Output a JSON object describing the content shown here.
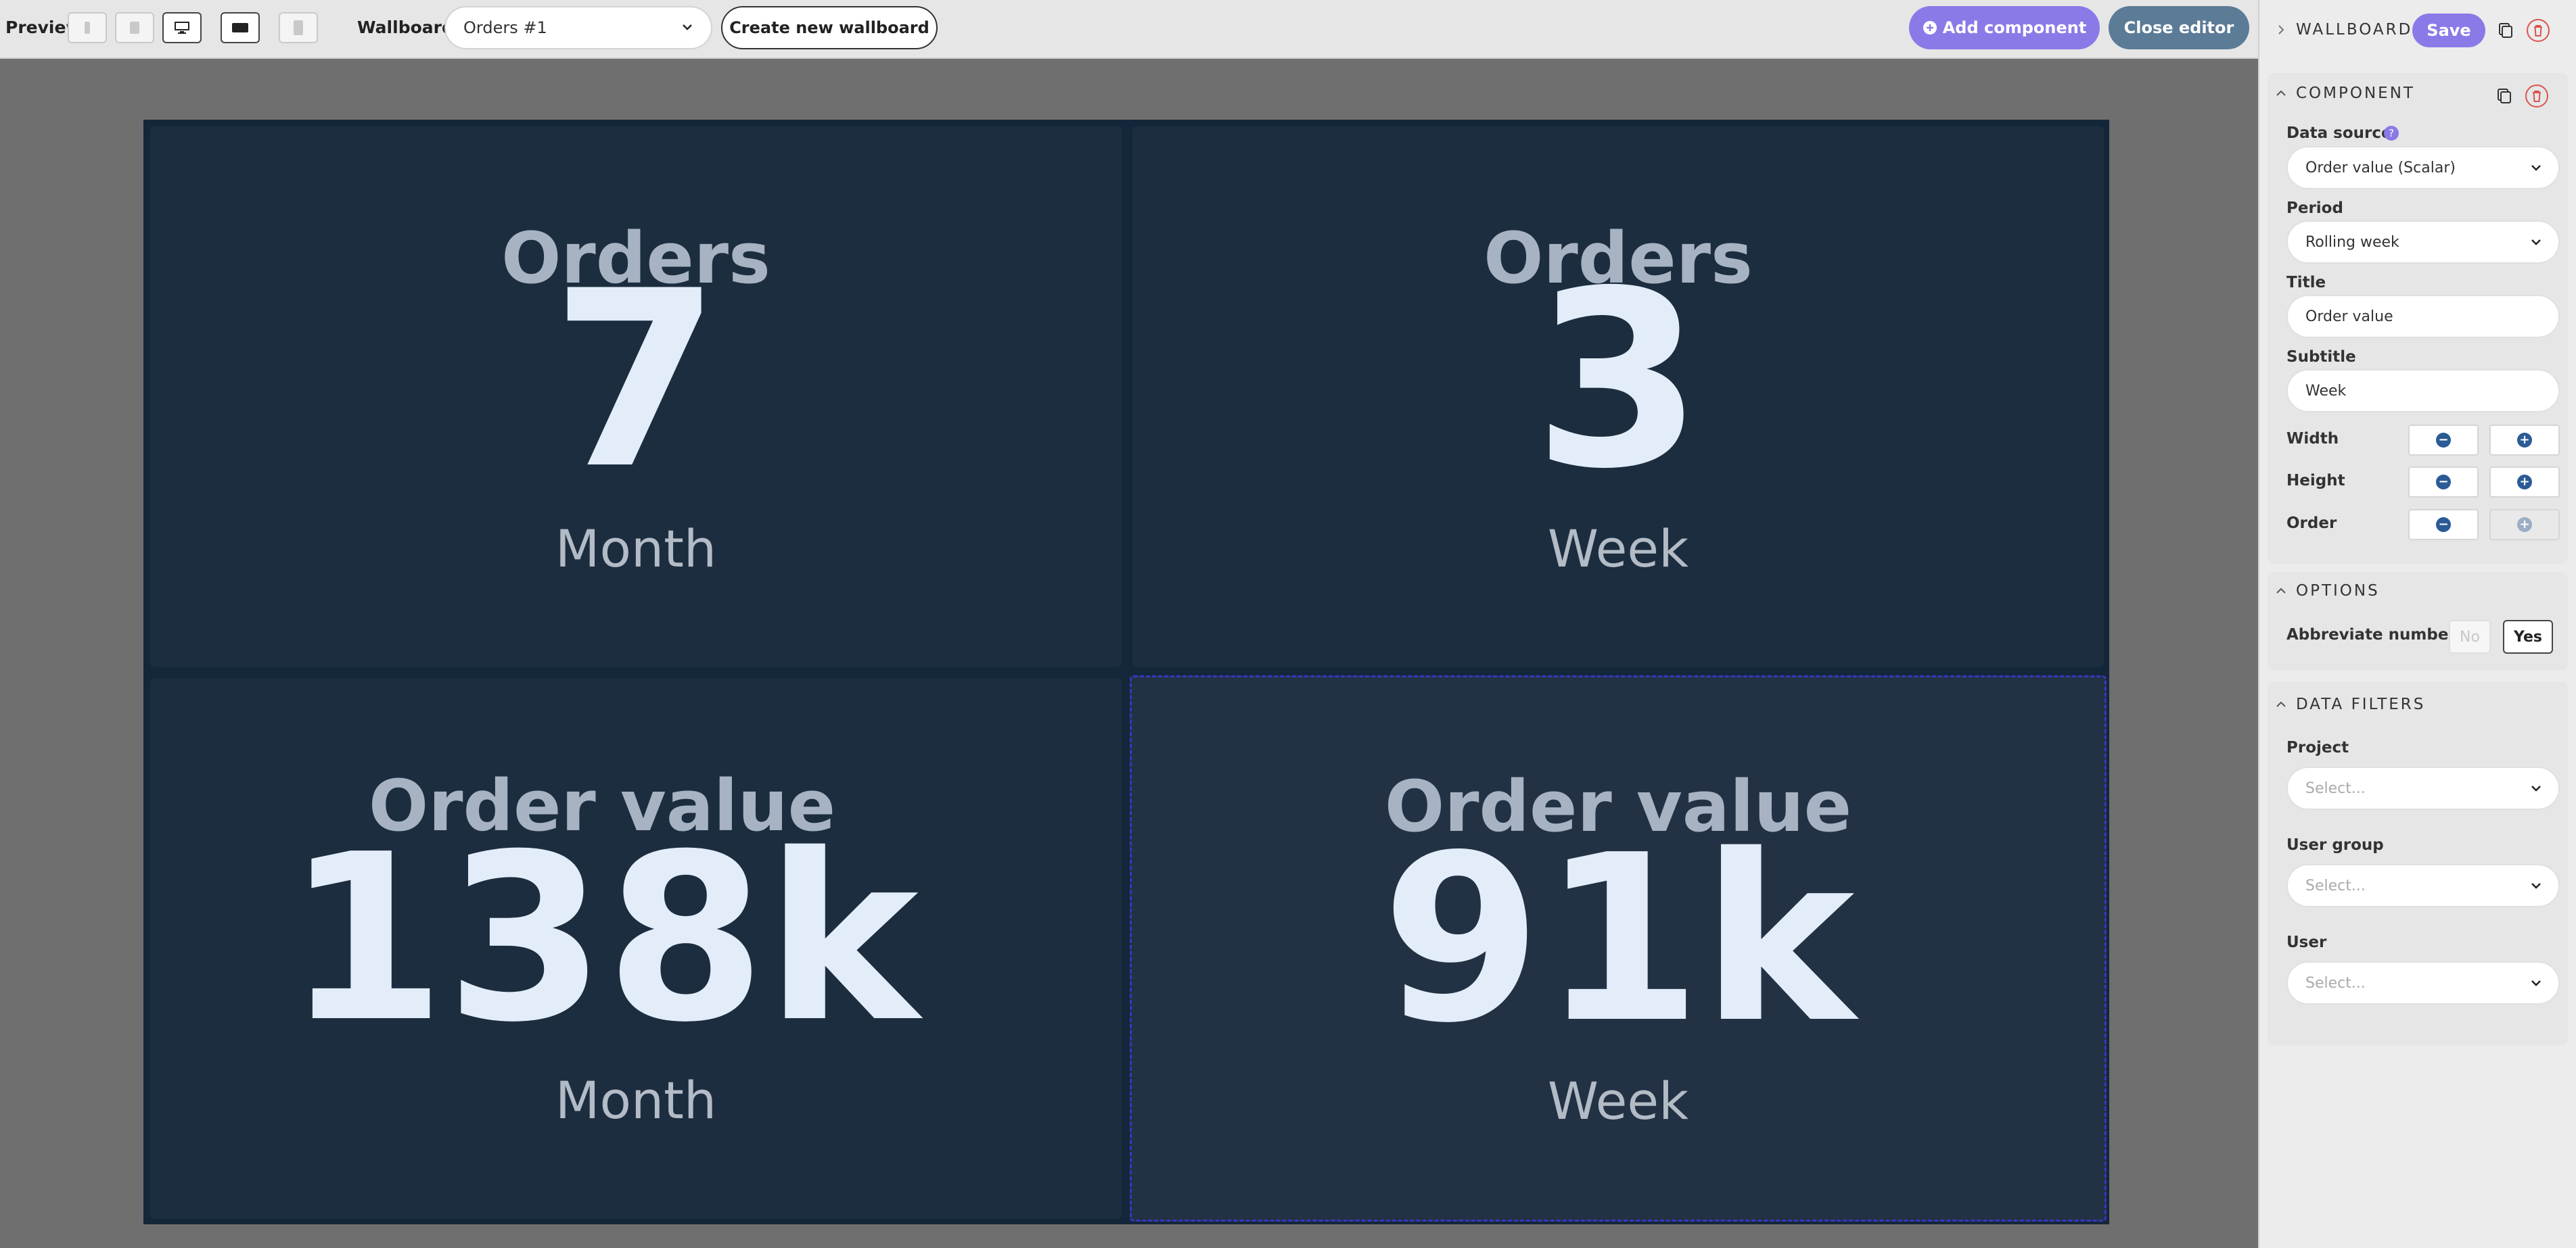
{
  "topbar": {
    "preview_label": "Preview",
    "wallboard_label": "Wallboard",
    "wallboard_selected": "Orders #1",
    "create_button": "Create new wallboard",
    "add_component_button": "Add component",
    "close_editor_button": "Close editor",
    "devices": [
      {
        "icon": "phone-portrait-icon",
        "active": false
      },
      {
        "icon": "tablet-icon",
        "active": false
      },
      {
        "icon": "desktop-icon",
        "active": true
      },
      {
        "icon": "tv-landscape-icon",
        "active": false
      },
      {
        "icon": "tv-portrait-icon",
        "active": false
      }
    ]
  },
  "tiles": [
    {
      "title": "Orders",
      "value": "7",
      "subtitle": "Month",
      "selected": false
    },
    {
      "title": "Orders",
      "value": "3",
      "subtitle": "Week",
      "selected": false
    },
    {
      "title": "Order value",
      "value": "138k",
      "subtitle": "Month",
      "selected": false
    },
    {
      "title": "Order value",
      "value": "91k",
      "subtitle": "Week",
      "selected": true
    }
  ],
  "panel": {
    "wallboard_header": "WALLBOARD",
    "save_button": "Save",
    "component_header": "COMPONENT",
    "data_source_label": "Data source",
    "help_mark": "?",
    "data_source_value": "Order value (Scalar)",
    "period_label": "Period",
    "period_value": "Rolling week",
    "title_label": "Title",
    "title_value": "Order value",
    "subtitle_label": "Subtitle",
    "subtitle_value": "Week",
    "width_label": "Width",
    "height_label": "Height",
    "order_label": "Order",
    "options_header": "OPTIONS",
    "abbreviate_label": "Abbreviate numbers",
    "abbreviate_no": "No",
    "abbreviate_yes": "Yes",
    "abbreviate_selected": "Yes",
    "filters_header": "DATA FILTERS",
    "project_label": "Project",
    "project_placeholder": "Select...",
    "user_group_label": "User group",
    "user_group_placeholder": "Select...",
    "user_label": "User",
    "user_placeholder": "Select..."
  },
  "colors": {
    "accent_purple": "#8a7ae8",
    "slate_button": "#5b7b96",
    "canvas": "#14263a",
    "tile": "#1c2d3f",
    "danger": "#d9534f"
  }
}
